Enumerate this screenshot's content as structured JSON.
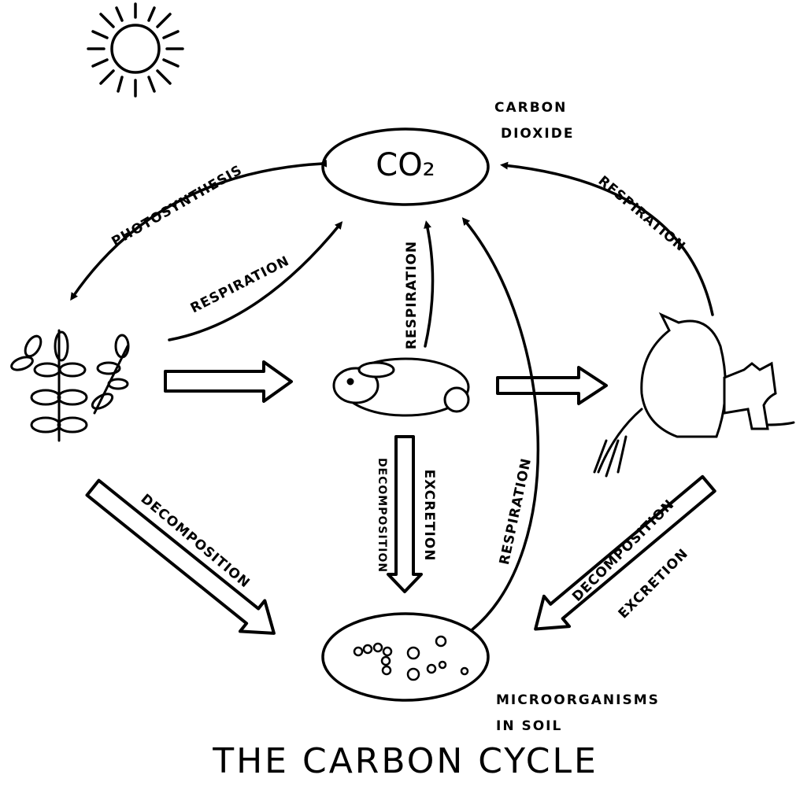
{
  "title": "THE CARBON CYCLE",
  "nodes": {
    "co2": {
      "label": "CO₂",
      "caption": [
        "CARBON",
        "DIOXIDE"
      ]
    },
    "soil": {
      "caption": [
        "MICROORGANISMS",
        "IN SOIL"
      ]
    }
  },
  "edges": [
    {
      "labels": [
        "PHOTOSYNTHESIS"
      ]
    },
    {
      "labels": [
        "RESPIRATION"
      ]
    },
    {
      "labels": [
        "RESPIRATION"
      ]
    },
    {
      "labels": [
        "RESPIRATION"
      ]
    },
    {
      "labels": [
        "RESPIRATION"
      ]
    },
    {
      "labels": [
        "DECOMPOSITION"
      ]
    },
    {
      "labels": [
        "DECOMPOSITION",
        "EXCRETION"
      ]
    },
    {
      "labels": [
        "DECOMPOSITION",
        "EXCRETION"
      ]
    }
  ]
}
